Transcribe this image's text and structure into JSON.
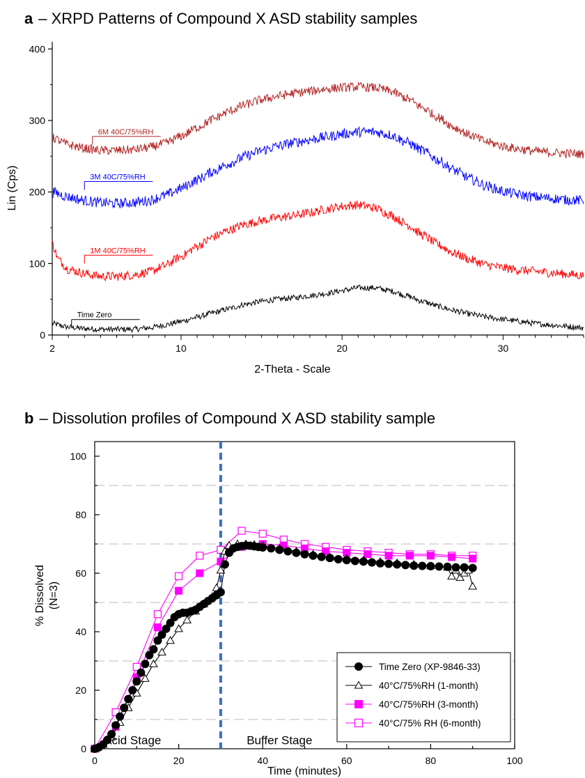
{
  "chart_data": [
    {
      "type": "line",
      "panel": "a",
      "title": "– XRPD Patterns of Compound X ASD stability samples",
      "xlabel": "2-Theta - Scale",
      "ylabel": "Lin (Cps)",
      "xlim": [
        2,
        35
      ],
      "ylim": [
        0,
        410
      ],
      "xticks": [
        "2",
        "10",
        "20",
        "30"
      ],
      "xtick_values": [
        2,
        10,
        20,
        30
      ],
      "yticks": [
        "0",
        "100",
        "200",
        "300",
        "400"
      ],
      "ytick_values": [
        0,
        100,
        200,
        300,
        400
      ],
      "grid": false,
      "series": [
        {
          "name": "Time Zero",
          "color": "#000000",
          "label_at": [
            3.2,
            10
          ],
          "x": [
            2,
            3,
            4,
            5,
            6,
            7,
            8,
            9,
            10,
            11,
            12,
            13,
            14,
            15,
            16,
            17,
            18,
            19,
            20,
            21,
            22,
            23,
            24,
            25,
            26,
            27,
            28,
            29,
            30,
            31,
            32,
            33,
            34,
            35
          ],
          "y": [
            16,
            11,
            9,
            8,
            8,
            8,
            10,
            14,
            19,
            25,
            31,
            37,
            43,
            47,
            50,
            52,
            55,
            58,
            62,
            66,
            66,
            62,
            55,
            47,
            40,
            34,
            29,
            25,
            22,
            19,
            16,
            14,
            12,
            10
          ]
        },
        {
          "name": "1M 40C/75%RH",
          "color": "#ff0000",
          "label_at": [
            4.0,
            100
          ],
          "x": [
            2,
            2.4,
            3,
            4,
            5,
            6,
            7,
            8,
            9,
            10,
            11,
            12,
            13,
            14,
            15,
            16,
            17,
            18,
            19,
            20,
            21,
            22,
            23,
            24,
            25,
            26,
            27,
            28,
            29,
            30,
            31,
            32,
            33,
            34,
            35
          ],
          "y": [
            128,
            105,
            92,
            86,
            82,
            82,
            84,
            88,
            97,
            110,
            124,
            137,
            147,
            155,
            160,
            164,
            167,
            171,
            176,
            180,
            182,
            178,
            168,
            155,
            140,
            126,
            114,
            105,
            98,
            94,
            91,
            89,
            87,
            85,
            83
          ]
        },
        {
          "name": "3M 40C/75%RH",
          "color": "#0000ff",
          "label_at": [
            4.0,
            203
          ],
          "x": [
            2,
            3,
            4,
            5,
            6,
            7,
            8,
            9,
            10,
            11,
            12,
            13,
            14,
            15,
            16,
            17,
            18,
            19,
            20,
            21,
            22,
            23,
            24,
            25,
            26,
            27,
            28,
            29,
            30,
            31,
            32,
            33,
            34,
            35
          ],
          "y": [
            200,
            193,
            188,
            185,
            184,
            185,
            188,
            195,
            205,
            217,
            229,
            240,
            250,
            258,
            264,
            269,
            273,
            277,
            281,
            284,
            284,
            280,
            270,
            258,
            244,
            230,
            218,
            208,
            201,
            196,
            193,
            191,
            189,
            188
          ]
        },
        {
          "name": "6M 40C/75%RH",
          "color": "#b22222",
          "label_at": [
            4.5,
            266
          ],
          "x": [
            2,
            3,
            4,
            5,
            6,
            7,
            8,
            9,
            10,
            11,
            12,
            13,
            14,
            15,
            16,
            17,
            18,
            19,
            20,
            21,
            22,
            23,
            24,
            25,
            26,
            27,
            28,
            29,
            30,
            31,
            32,
            33,
            34,
            35
          ],
          "y": [
            276,
            266,
            261,
            258,
            258,
            259,
            262,
            268,
            278,
            290,
            302,
            313,
            322,
            329,
            334,
            338,
            341,
            344,
            346,
            347,
            346,
            341,
            331,
            318,
            304,
            290,
            279,
            270,
            264,
            260,
            257,
            255,
            254,
            253
          ]
        }
      ]
    },
    {
      "type": "line",
      "panel": "b",
      "title": "– Dissolution profiles of Compound X ASD stability sample",
      "xlabel": "Time (minutes)",
      "ylabel": "% Dissolved",
      "ylabel2": "(N=3)",
      "xlim": [
        0,
        100
      ],
      "ylim": [
        0,
        105
      ],
      "xticks": [
        "0",
        "20",
        "40",
        "60",
        "80",
        "100"
      ],
      "xtick_values": [
        0,
        20,
        40,
        60,
        80,
        100
      ],
      "yticks": [
        "0",
        "20",
        "40",
        "60",
        "80",
        "100"
      ],
      "ytick_values": [
        0,
        20,
        40,
        60,
        80,
        100
      ],
      "grid": true,
      "legend_position": "bottom-right",
      "stage_divider_x": 30,
      "annotations": [
        "Acid Stage",
        "Buffer Stage"
      ],
      "series": [
        {
          "name": "Time Zero (XP-9846-33)",
          "marker": "filled-circle",
          "color": "#000000",
          "x": [
            0,
            1,
            2,
            3,
            4,
            5,
            6,
            7,
            8,
            9,
            10,
            11,
            12,
            13,
            14,
            15,
            16,
            17,
            18,
            19,
            20,
            21,
            22,
            23,
            24,
            25,
            26,
            27,
            28,
            29,
            30,
            31,
            32,
            33,
            34,
            35,
            36,
            37,
            38,
            39,
            40,
            42,
            44,
            46,
            48,
            50,
            52,
            54,
            56,
            58,
            60,
            62,
            64,
            66,
            68,
            70,
            72,
            74,
            76,
            78,
            80,
            82,
            84,
            86,
            88,
            90
          ],
          "y": [
            0,
            0.5,
            1.5,
            3,
            5,
            8,
            11,
            14,
            17,
            20,
            23,
            26,
            29,
            32,
            34,
            37,
            39,
            41,
            43,
            45,
            46,
            46.5,
            46.5,
            47,
            47.5,
            48.5,
            49.5,
            50.5,
            51.5,
            52.5,
            53.5,
            63,
            67,
            68.5,
            69,
            69.3,
            69.5,
            69.4,
            69.2,
            69,
            68.8,
            68.5,
            68,
            67.5,
            67,
            66.5,
            66,
            65.6,
            65.2,
            64.8,
            64.5,
            64.2,
            64,
            63.7,
            63.4,
            63.2,
            63,
            62.8,
            62.6,
            62.5,
            62.4,
            62.3,
            62.2,
            62,
            62,
            61.8
          ]
        },
        {
          "name": "40°C/75%RH (1-month)",
          "marker": "open-triangle",
          "color": "#000000",
          "x": [
            0,
            2,
            4,
            6,
            8,
            10,
            12,
            14,
            16,
            18,
            20,
            22,
            24,
            26,
            28,
            29,
            30,
            31,
            32,
            34,
            36,
            38,
            40,
            44,
            48,
            52,
            56,
            60,
            64,
            68,
            72,
            76,
            80,
            84,
            85,
            86,
            87,
            88,
            89,
            90
          ],
          "y": [
            0,
            1.5,
            4,
            9,
            14,
            19,
            24,
            29,
            33,
            37,
            41,
            44,
            47,
            49.5,
            52,
            55,
            61,
            67.5,
            69.5,
            70,
            70,
            69.8,
            69.5,
            68.5,
            67.5,
            66.5,
            65.5,
            65,
            64.5,
            64,
            63.5,
            63,
            62.5,
            62,
            59,
            61,
            58.5,
            60,
            61,
            55.5
          ]
        },
        {
          "name": "40°C/75%RH (3-month)",
          "marker": "filled-square",
          "color": "#ff00ff",
          "x": [
            0,
            5,
            10,
            15,
            20,
            25,
            30,
            35,
            40,
            45,
            50,
            55,
            60,
            65,
            70,
            75,
            80,
            85,
            90
          ],
          "y": [
            0,
            7.5,
            24.5,
            41.5,
            54,
            60,
            64,
            69,
            70,
            69.5,
            68.5,
            67.5,
            67,
            66.5,
            66,
            66,
            66,
            65.5,
            65
          ]
        },
        {
          "name": "40°C/75% RH (6-month)",
          "marker": "open-square",
          "color": "#ff00ff",
          "x": [
            0,
            5,
            10,
            15,
            20,
            25,
            30,
            35,
            40,
            45,
            50,
            55,
            60,
            65,
            70,
            75,
            80,
            85,
            90
          ],
          "y": [
            0,
            12.5,
            28,
            46,
            59,
            66,
            68,
            74.5,
            73.5,
            71.5,
            70,
            69,
            68,
            67.5,
            67,
            66.5,
            66.5,
            66,
            66
          ]
        }
      ]
    }
  ],
  "panel_a": {
    "letter": "a",
    "title": "– XRPD Patterns of Compound X ASD stability samples"
  },
  "panel_b": {
    "letter": "b",
    "title": "– Dissolution profiles of Compound X ASD stability sample"
  },
  "colors": {
    "black": "#000000",
    "red": "#ff0000",
    "blue": "#0000ff",
    "darkred": "#b22222",
    "magenta": "#ff00ff",
    "divider": "#3a6fc4",
    "grid": "#bbbbbb"
  }
}
